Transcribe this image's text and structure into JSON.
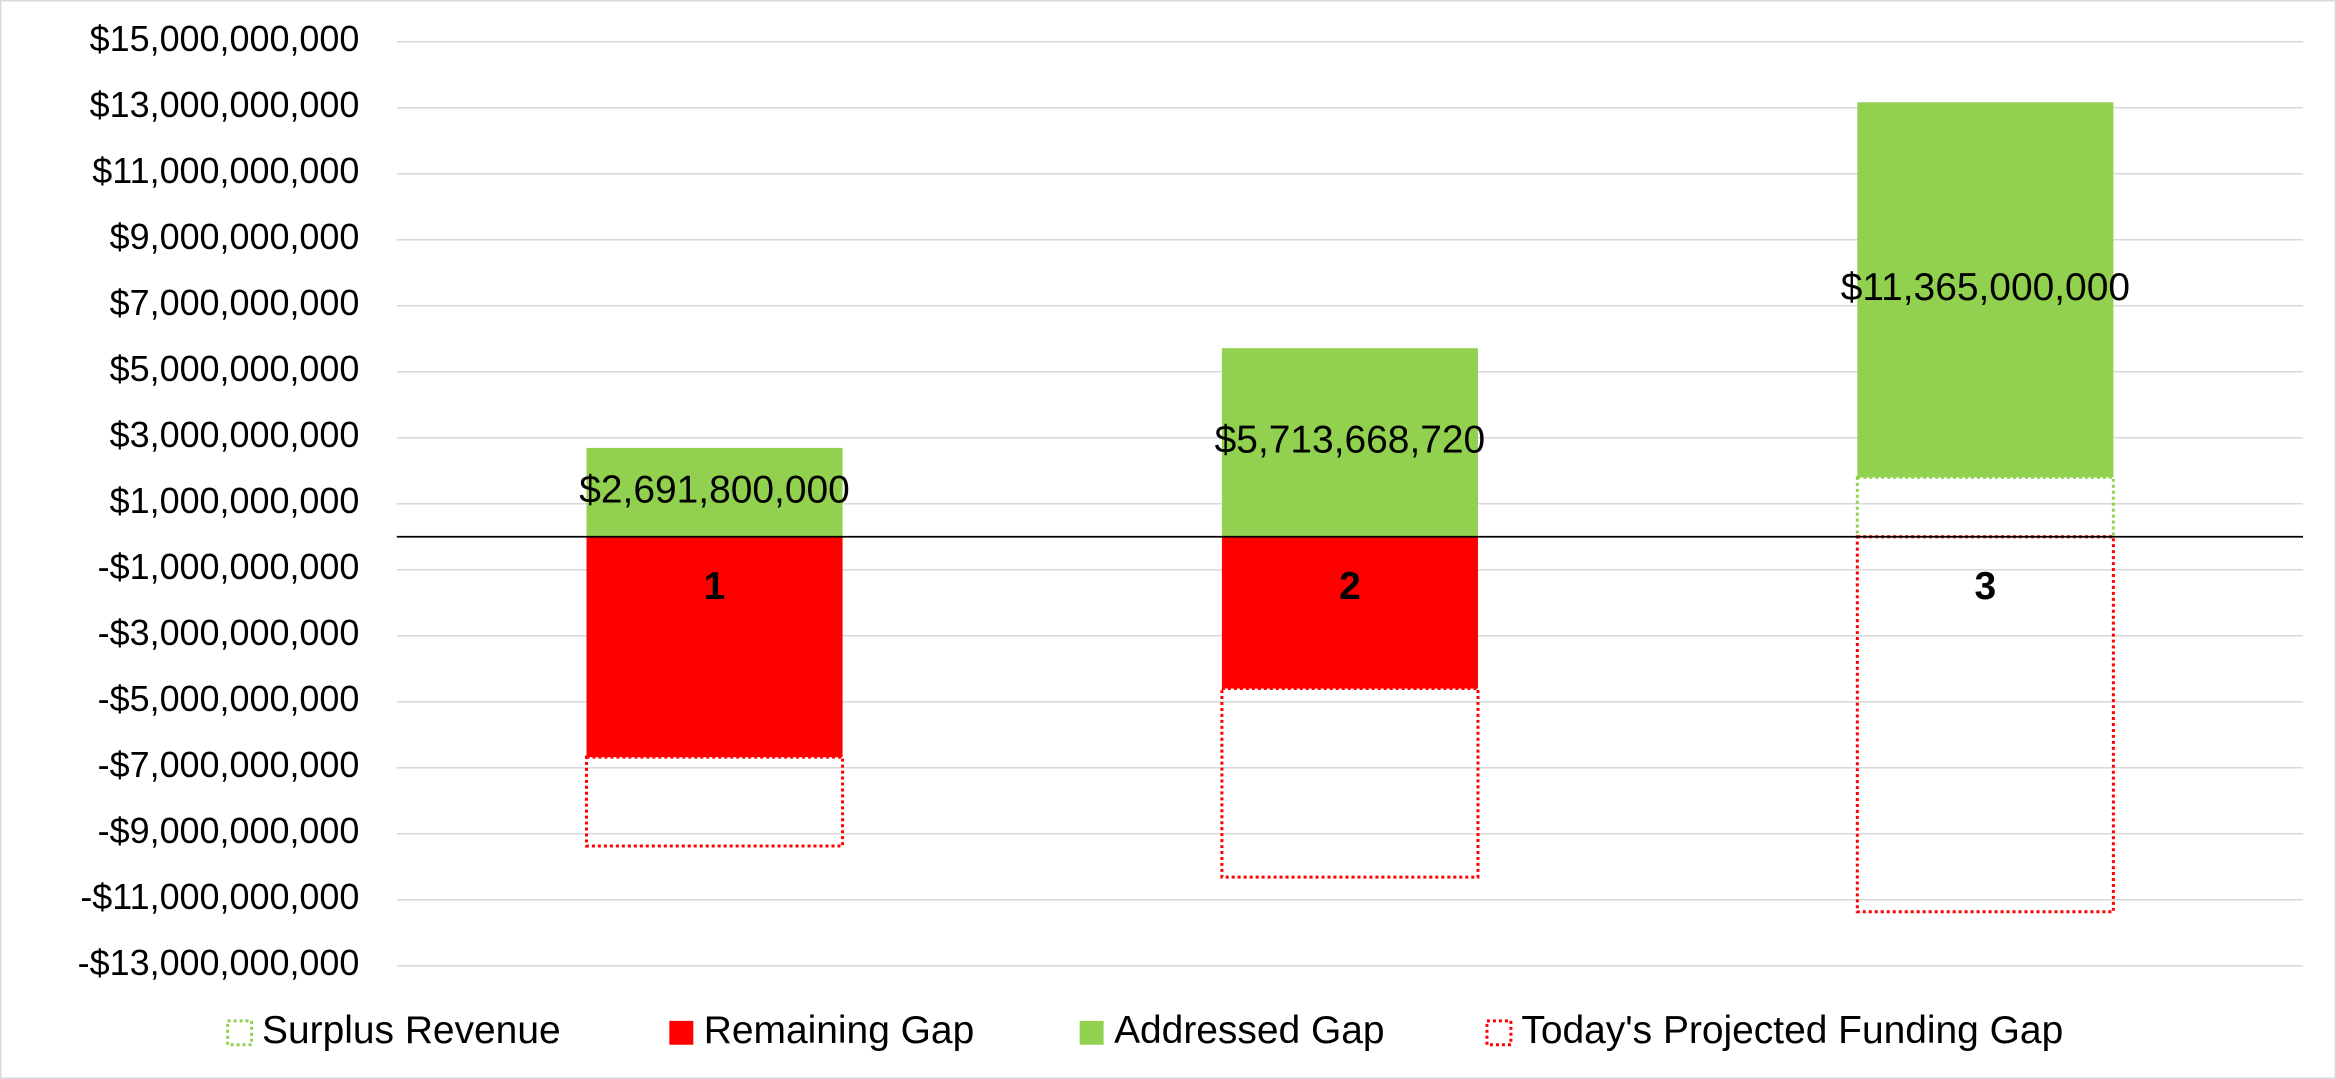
{
  "chart_data": {
    "type": "stacked_bar",
    "categories": [
      "1",
      "2",
      "3"
    ],
    "series": [
      {
        "name": "Surplus Revenue",
        "color": "#92d050",
        "pattern": "dotted",
        "values": [
          0,
          0,
          1800000000
        ]
      },
      {
        "name": "Remaining Gap",
        "color": "#ff0000",
        "pattern": "solid",
        "values": [
          -6680000000,
          -4600000000,
          0
        ]
      },
      {
        "name": "Addressed Gap",
        "color": "#92d050",
        "pattern": "solid",
        "values": [
          2691800000,
          5713668720,
          11365000000
        ],
        "value_labels": [
          "$2,691,800,000",
          "$5,713,668,720",
          "$11,365,000,000"
        ]
      },
      {
        "name": "Today's Projected Funding Gap",
        "color": "#ff0000",
        "pattern": "dotted",
        "values": [
          -2691800000,
          -5713668720,
          -11365000000
        ]
      }
    ],
    "ylim": [
      -13000000000,
      15000000000
    ],
    "yticks": [
      {
        "value": -13000000000,
        "label": "-$13,000,000,000"
      },
      {
        "value": -11000000000,
        "label": "-$11,000,000,000"
      },
      {
        "value": -9000000000,
        "label": "-$9,000,000,000"
      },
      {
        "value": -7000000000,
        "label": "-$7,000,000,000"
      },
      {
        "value": -5000000000,
        "label": "-$5,000,000,000"
      },
      {
        "value": -3000000000,
        "label": "-$3,000,000,000"
      },
      {
        "value": -1000000000,
        "label": "-$1,000,000,000"
      },
      {
        "value": 1000000000,
        "label": "$1,000,000,000"
      },
      {
        "value": 3000000000,
        "label": "$3,000,000,000"
      },
      {
        "value": 5000000000,
        "label": "$5,000,000,000"
      },
      {
        "value": 7000000000,
        "label": "$7,000,000,000"
      },
      {
        "value": 9000000000,
        "label": "$9,000,000,000"
      },
      {
        "value": 11000000000,
        "label": "$11,000,000,000"
      },
      {
        "value": 13000000000,
        "label": "$13,000,000,000"
      },
      {
        "value": 15000000000,
        "label": "$15,000,000,000"
      }
    ],
    "grid": true,
    "legend": "bottom"
  }
}
